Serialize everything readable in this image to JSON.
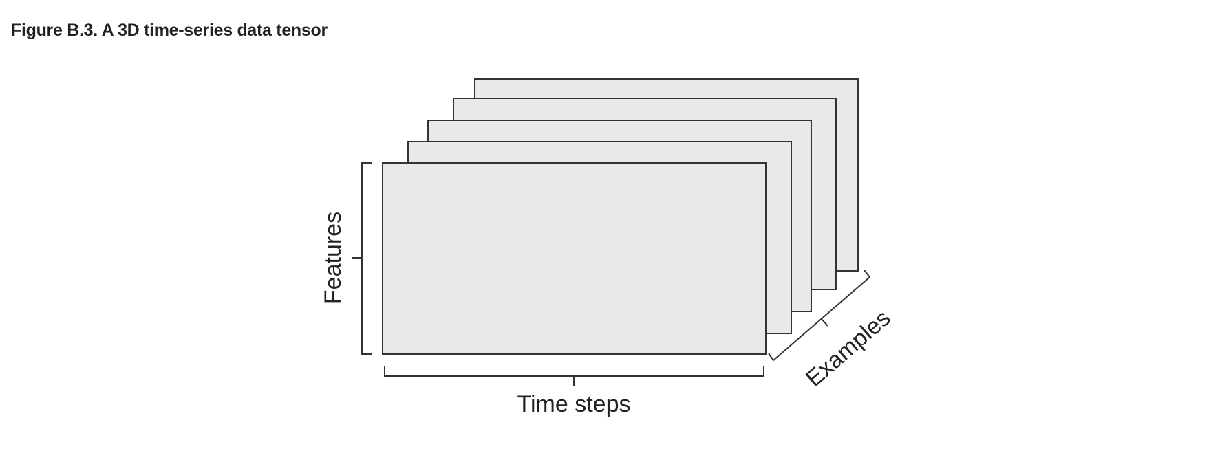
{
  "caption": "Figure B.3. A 3D time-series data tensor",
  "diagram": {
    "labels": {
      "features": "Features",
      "time_steps": "Time steps",
      "examples": "Examples"
    },
    "frame_count": 5,
    "colors": {
      "frame_fill": "#e9e9ea",
      "stroke": "#333333",
      "text": "#222222"
    }
  }
}
